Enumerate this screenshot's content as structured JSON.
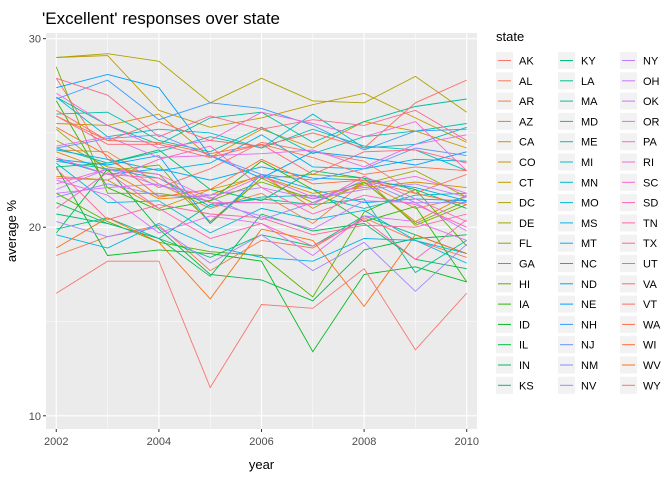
{
  "chart_data": {
    "type": "line",
    "title": "'Excellent' responses over state",
    "xlabel": "year",
    "ylabel": "average %",
    "x": [
      2002,
      2003,
      2004,
      2005,
      2006,
      2007,
      2008,
      2009,
      2010
    ],
    "x_ticks": [
      "2002",
      "2004",
      "2006",
      "2008",
      "2010"
    ],
    "y_ticks": [
      "10",
      "20",
      "30"
    ],
    "xlim": [
      2001.8,
      2010.2
    ],
    "ylim": [
      9.3,
      30.3
    ],
    "grid": true,
    "legend_title": "state",
    "legend_position": "right",
    "series": [
      {
        "name": "AK",
        "color": "#F8766D",
        "values": [
          27.9,
          23.6,
          22.1,
          23.1,
          24.5,
          24.0,
          23.5,
          21.8,
          22.8
        ]
      },
      {
        "name": "AL",
        "color": "#F47A5A",
        "values": [
          18.5,
          19.5,
          20.1,
          17.7,
          19.3,
          18.9,
          20.5,
          19.3,
          18.4
        ]
      },
      {
        "name": "AR",
        "color": "#ED8141",
        "values": [
          24.1,
          24.0,
          22.3,
          21.0,
          21.8,
          20.2,
          22.4,
          21.0,
          21.6
        ]
      },
      {
        "name": "AZ",
        "color": "#E38900",
        "values": [
          24.0,
          23.0,
          21.5,
          21.7,
          22.8,
          21.0,
          22.4,
          20.3,
          21.7
        ]
      },
      {
        "name": "CA",
        "color": "#D89000",
        "values": [
          22.7,
          22.5,
          21.0,
          22.0,
          22.7,
          21.8,
          22.1,
          22.4,
          22.1
        ]
      },
      {
        "name": "CO",
        "color": "#CB9600",
        "values": [
          25.5,
          25.4,
          26.0,
          23.7,
          25.2,
          24.2,
          25.6,
          25.1,
          24.2
        ]
      },
      {
        "name": "CT",
        "color": "#BD9C00",
        "values": [
          29.0,
          29.1,
          26.2,
          25.3,
          25.8,
          26.5,
          27.1,
          25.8,
          24.5
        ]
      },
      {
        "name": "DC",
        "color": "#AEA200",
        "values": [
          29.0,
          29.2,
          28.8,
          26.6,
          27.9,
          26.7,
          26.6,
          28.0,
          26.1
        ]
      },
      {
        "name": "DE",
        "color": "#9DA700",
        "values": [
          24.6,
          23.2,
          22.8,
          20.3,
          22.6,
          21.3,
          22.3,
          23.0,
          21.6
        ]
      },
      {
        "name": "FL",
        "color": "#8AAB00",
        "values": [
          25.2,
          23.0,
          23.3,
          20.2,
          22.6,
          22.8,
          22.6,
          20.1,
          21.2
        ]
      },
      {
        "name": "GA",
        "color": "#74AF00",
        "values": [
          28.5,
          21.8,
          21.8,
          21.4,
          22.4,
          21.5,
          22.4,
          20.2,
          21.4
        ]
      },
      {
        "name": "HI",
        "color": "#58B300",
        "values": [
          21.8,
          20.3,
          19.2,
          18.7,
          18.5,
          16.3,
          20.8,
          22.0,
          19.0
        ]
      },
      {
        "name": "IA",
        "color": "#2DB600",
        "values": [
          26.7,
          22.1,
          20.9,
          21.4,
          23.5,
          22.0,
          20.3,
          21.1,
          17.1
        ]
      },
      {
        "name": "ID",
        "color": "#00B81F",
        "values": [
          23.2,
          18.5,
          18.8,
          18.6,
          18.2,
          13.4,
          17.5,
          17.9,
          17.1
        ]
      },
      {
        "name": "IL",
        "color": "#00BA42",
        "values": [
          19.7,
          23.1,
          19.9,
          17.5,
          17.2,
          16.1,
          18.8,
          19.4,
          19.6
        ]
      },
      {
        "name": "IN",
        "color": "#00BC59",
        "values": [
          21.3,
          20.2,
          19.4,
          17.4,
          20.7,
          19.8,
          20.2,
          18.3,
          17.8
        ]
      },
      {
        "name": "KS",
        "color": "#00BE6C",
        "values": [
          23.2,
          23.4,
          24.1,
          22.0,
          21.4,
          23.0,
          22.6,
          22.0,
          21.0
        ]
      },
      {
        "name": "KY",
        "color": "#00BF7D",
        "values": [
          20.7,
          20.2,
          19.4,
          18.4,
          19.6,
          19.0,
          20.6,
          19.6,
          18.6
        ]
      },
      {
        "name": "LA",
        "color": "#00C08D",
        "values": [
          19.9,
          20.5,
          19.4,
          21.2,
          21.5,
          21.2,
          21.5,
          17.6,
          19.3
        ]
      },
      {
        "name": "MA",
        "color": "#00C09C",
        "values": [
          26.9,
          25.4,
          24.4,
          25.8,
          26.1,
          24.5,
          25.6,
          26.4,
          26.8
        ]
      },
      {
        "name": "MD",
        "color": "#00C0AB",
        "values": [
          26.0,
          26.1,
          24.6,
          24.0,
          25.3,
          23.9,
          24.8,
          25.1,
          25.5
        ]
      },
      {
        "name": "ME",
        "color": "#00BFB8",
        "values": [
          24.2,
          23.4,
          24.0,
          24.8,
          24.2,
          25.2,
          24.3,
          24.1,
          23.0
        ]
      },
      {
        "name": "MI",
        "color": "#00BDC4",
        "values": [
          23.5,
          23.1,
          22.6,
          21.1,
          21.6,
          21.7,
          21.0,
          21.7,
          21.8
        ]
      },
      {
        "name": "MN",
        "color": "#00BBD0",
        "values": [
          26.9,
          24.8,
          25.2,
          25.0,
          24.2,
          26.0,
          24.2,
          24.4,
          25.3
        ]
      },
      {
        "name": "MO",
        "color": "#00B8DB",
        "values": [
          23.4,
          21.3,
          21.4,
          19.7,
          21.0,
          20.4,
          20.9,
          19.3,
          18.1
        ]
      },
      {
        "name": "MS",
        "color": "#00B4E4",
        "values": [
          19.6,
          18.9,
          20.2,
          19.0,
          18.4,
          18.2,
          19.4,
          19.3,
          18.6
        ]
      },
      {
        "name": "MT",
        "color": "#00B0ED",
        "values": [
          24.1,
          23.6,
          23.0,
          23.4,
          24.9,
          23.2,
          23.1,
          23.6,
          23.5
        ]
      },
      {
        "name": "NC",
        "color": "#00ABF4",
        "values": [
          23.6,
          22.8,
          23.1,
          22.5,
          23.2,
          22.6,
          22.5,
          22.1,
          21.4
        ]
      },
      {
        "name": "ND",
        "color": "#00A6FA",
        "values": [
          23.6,
          23.3,
          23.8,
          20.2,
          22.8,
          22.0,
          21.3,
          21.5,
          21.4
        ]
      },
      {
        "name": "NE",
        "color": "#00A0FF",
        "values": [
          27.4,
          28.1,
          27.4,
          23.8,
          22.6,
          24.0,
          23.7,
          23.3,
          24.0
        ]
      },
      {
        "name": "NH",
        "color": "#359AFF",
        "values": [
          26.8,
          27.8,
          25.7,
          26.6,
          26.3,
          25.4,
          24.1,
          25.1,
          25.2
        ]
      },
      {
        "name": "NJ",
        "color": "#6B93FF",
        "values": [
          24.2,
          24.7,
          24.9,
          23.8,
          22.8,
          22.5,
          23.1,
          24.2,
          23.8
        ]
      },
      {
        "name": "NM",
        "color": "#8C8CFF",
        "values": [
          21.6,
          22.3,
          21.7,
          21.6,
          20.4,
          21.3,
          22.5,
          21.3,
          21.3
        ]
      },
      {
        "name": "NV",
        "color": "#A684FF",
        "values": [
          20.3,
          19.5,
          20.0,
          18.1,
          19.6,
          17.7,
          19.2,
          16.6,
          19.1
        ]
      },
      {
        "name": "NY",
        "color": "#BA7CFF",
        "values": [
          22.0,
          23.1,
          22.2,
          21.7,
          22.1,
          21.5,
          22.0,
          22.3,
          21.6
        ]
      },
      {
        "name": "OH",
        "color": "#CB76FF",
        "values": [
          21.8,
          22.1,
          22.3,
          21.3,
          20.6,
          19.9,
          21.4,
          21.3,
          19.8
        ]
      },
      {
        "name": "OK",
        "color": "#D970F7",
        "values": [
          22.5,
          21.7,
          19.7,
          20.6,
          20.2,
          18.5,
          20.6,
          20.3,
          19.3
        ]
      },
      {
        "name": "OR",
        "color": "#E56CEF",
        "values": [
          24.3,
          24.8,
          23.7,
          23.8,
          23.9,
          24.1,
          23.2,
          24.4,
          24.9
        ]
      },
      {
        "name": "PA",
        "color": "#EF68E5",
        "values": [
          22.3,
          23.1,
          22.8,
          21.5,
          22.7,
          21.6,
          22.2,
          22.7,
          21.8
        ]
      },
      {
        "name": "RI",
        "color": "#F665D9",
        "values": [
          27.1,
          25.4,
          24.2,
          24.6,
          26.1,
          25.5,
          24.8,
          25.6,
          23.0
        ]
      },
      {
        "name": "SC",
        "color": "#FB63CC",
        "values": [
          23.7,
          22.8,
          22.6,
          21.3,
          21.3,
          21.2,
          22.7,
          21.5,
          20.3
        ]
      },
      {
        "name": "SD",
        "color": "#FF62BD",
        "values": [
          22.6,
          22.5,
          23.6,
          24.3,
          22.1,
          20.7,
          21.7,
          21.2,
          20.0
        ]
      },
      {
        "name": "TN",
        "color": "#FF62AE",
        "values": [
          21.0,
          22.9,
          21.0,
          19.4,
          20.2,
          19.0,
          20.4,
          18.3,
          20.4
        ]
      },
      {
        "name": "TX",
        "color": "#FF639D",
        "values": [
          23.1,
          20.4,
          21.2,
          20.7,
          20.5,
          19.6,
          20.1,
          20.0,
          20.7
        ]
      },
      {
        "name": "UT",
        "color": "#FF658B",
        "values": [
          27.9,
          27.0,
          24.8,
          25.9,
          25.2,
          25.7,
          25.4,
          26.2,
          24.6
        ]
      },
      {
        "name": "VA",
        "color": "#FF6878",
        "values": [
          25.9,
          24.4,
          24.4,
          23.7,
          24.4,
          22.8,
          24.0,
          24.1,
          23.4
        ]
      },
      {
        "name": "VT",
        "color": "#FF6A63",
        "values": [
          26.2,
          24.6,
          25.6,
          24.6,
          24.3,
          25.0,
          24.2,
          26.6,
          27.8
        ]
      },
      {
        "name": "WA",
        "color": "#FF6C4C",
        "values": [
          25.9,
          24.6,
          24.5,
          23.9,
          24.4,
          23.7,
          22.8,
          23.2,
          23.0
        ]
      },
      {
        "name": "WI",
        "color": "#FC6F34",
        "values": [
          25.3,
          23.8,
          21.6,
          22.0,
          23.6,
          22.3,
          22.5,
          21.8,
          21.2
        ]
      },
      {
        "name": "WV",
        "color": "#F87219",
        "values": [
          18.9,
          20.5,
          19.2,
          16.2,
          19.9,
          19.3,
          15.8,
          19.6,
          18.6
        ]
      },
      {
        "name": "WY",
        "color": "#F8766D",
        "values": [
          16.5,
          18.2,
          18.2,
          11.5,
          15.9,
          15.7,
          17.8,
          13.5,
          16.5
        ]
      }
    ]
  }
}
